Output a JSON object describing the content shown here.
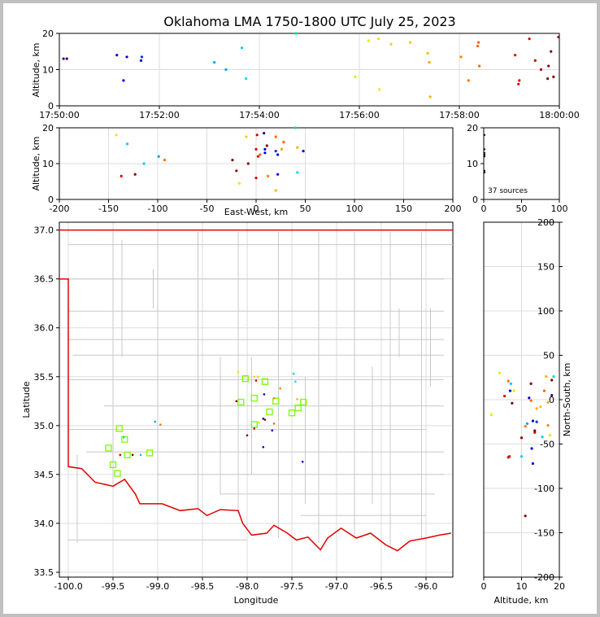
{
  "title": "Oklahoma LMA 1750-1800 UTC July 25, 2023",
  "colors": {
    "frame": "#c0c0c0",
    "grid": "#dddddd",
    "county": "#c8c8c8",
    "state": "#e00000",
    "station": "#7cfc00"
  },
  "chart_data": [
    {
      "id": "time_altitude",
      "type": "scatter",
      "ylabel": "Altitude, km",
      "xlim": [
        "17:50:00",
        "18:00:00"
      ],
      "ylim": [
        0,
        20
      ],
      "x_ticks": [
        "17:50:00",
        "17:52:00",
        "17:54:00",
        "17:56:00",
        "17:58:00",
        "18:00:00"
      ],
      "y_ticks": [
        0,
        10,
        20
      ],
      "grid": true,
      "points": [
        {
          "x": "17:50:05",
          "y": 13,
          "color": "#3a007a"
        },
        {
          "x": "17:50:09",
          "y": 13,
          "color": "#3a007a"
        },
        {
          "x": "17:51:09",
          "y": 14,
          "color": "#0000d0"
        },
        {
          "x": "17:51:17",
          "y": 7,
          "color": "#0000d0"
        },
        {
          "x": "17:51:21",
          "y": 13.5,
          "color": "#0000d0"
        },
        {
          "x": "17:51:38",
          "y": 12.5,
          "color": "#0000d0"
        },
        {
          "x": "17:51:39",
          "y": 13.5,
          "color": "#0030e0"
        },
        {
          "x": "17:53:06",
          "y": 12,
          "color": "#00a0ff"
        },
        {
          "x": "17:53:20",
          "y": 10,
          "color": "#00a0ff"
        },
        {
          "x": "17:53:39",
          "y": 16,
          "color": "#00c8ff"
        },
        {
          "x": "17:53:44",
          "y": 7.5,
          "color": "#00d8ff"
        },
        {
          "x": "17:54:44",
          "y": 20,
          "color": "#00e0a0"
        },
        {
          "x": "17:55:55",
          "y": 8,
          "color": "#e8e800"
        },
        {
          "x": "17:56:11",
          "y": 18,
          "color": "#e8e800"
        },
        {
          "x": "17:56:23",
          "y": 18.5,
          "color": "#e8e800"
        },
        {
          "x": "17:56:24",
          "y": 4.5,
          "color": "#ffe000"
        },
        {
          "x": "17:56:38",
          "y": 17,
          "color": "#f0d000"
        },
        {
          "x": "17:57:01",
          "y": 17.5,
          "color": "#ffc000"
        },
        {
          "x": "17:57:22",
          "y": 14.5,
          "color": "#ffb000"
        },
        {
          "x": "17:57:24",
          "y": 12,
          "color": "#ffa000"
        },
        {
          "x": "17:57:25",
          "y": 2.5,
          "color": "#ffb000"
        },
        {
          "x": "17:58:02",
          "y": 13.5,
          "color": "#ff8000"
        },
        {
          "x": "17:58:11",
          "y": 7,
          "color": "#ff7000"
        },
        {
          "x": "17:58:22",
          "y": 16.5,
          "color": "#ff6000"
        },
        {
          "x": "17:58:23",
          "y": 17.5,
          "color": "#ff6000"
        },
        {
          "x": "17:58:24",
          "y": 11,
          "color": "#ff6000"
        },
        {
          "x": "17:59:07",
          "y": 14,
          "color": "#e00000"
        },
        {
          "x": "17:59:11",
          "y": 6,
          "color": "#e00000"
        },
        {
          "x": "17:59:12",
          "y": 7,
          "color": "#e00000"
        },
        {
          "x": "17:59:24",
          "y": 18.5,
          "color": "#d00000"
        },
        {
          "x": "17:59:31",
          "y": 12.5,
          "color": "#c00000"
        },
        {
          "x": "17:59:38",
          "y": 10,
          "color": "#a00000"
        },
        {
          "x": "17:59:46",
          "y": 7.5,
          "color": "#900000"
        },
        {
          "x": "17:59:47",
          "y": 11,
          "color": "#900000"
        },
        {
          "x": "17:59:50",
          "y": 15,
          "color": "#800000"
        },
        {
          "x": "17:59:53",
          "y": 8,
          "color": "#800000"
        },
        {
          "x": "17:59:59",
          "y": 19,
          "color": "#800000"
        }
      ]
    },
    {
      "id": "ew_altitude",
      "type": "scatter",
      "xlabel": "East-West, km",
      "ylabel": "Altitude, km",
      "xlim": [
        -200,
        200
      ],
      "ylim": [
        0,
        20
      ],
      "x_ticks": [
        -200,
        -150,
        -100,
        -50,
        0,
        50,
        100,
        150,
        200
      ],
      "y_ticks": [
        0,
        10,
        20
      ],
      "grid": true,
      "points": [
        {
          "x": -142,
          "y": 18,
          "color": "#e8e800"
        },
        {
          "x": -131,
          "y": 15.5,
          "color": "#00c8ff"
        },
        {
          "x": -137,
          "y": 6.5,
          "color": "#e00000"
        },
        {
          "x": -123,
          "y": 7,
          "color": "#800000"
        },
        {
          "x": -114,
          "y": 10,
          "color": "#00c8ff"
        },
        {
          "x": -99,
          "y": 12,
          "color": "#00a0ff"
        },
        {
          "x": -93,
          "y": 11,
          "color": "#ff7000"
        },
        {
          "x": -24,
          "y": 11,
          "color": "#800000"
        },
        {
          "x": -20,
          "y": 8,
          "color": "#a00000"
        },
        {
          "x": -17,
          "y": 4.5,
          "color": "#ffe000"
        },
        {
          "x": -10,
          "y": 17.5,
          "color": "#f0d000"
        },
        {
          "x": -8,
          "y": 10,
          "color": "#900000"
        },
        {
          "x": 0,
          "y": 14,
          "color": "#e00000"
        },
        {
          "x": 1,
          "y": 18,
          "color": "#d00000"
        },
        {
          "x": 2,
          "y": 12,
          "color": "#e00000"
        },
        {
          "x": 0,
          "y": 6,
          "color": "#e00000"
        },
        {
          "x": 4,
          "y": 12.5,
          "color": "#ff6000"
        },
        {
          "x": 8,
          "y": 18.5,
          "color": "#3a007a"
        },
        {
          "x": 9,
          "y": 14,
          "color": "#0000d0"
        },
        {
          "x": 9,
          "y": 13,
          "color": "#0000d0"
        },
        {
          "x": 11,
          "y": 15,
          "color": "#800000"
        },
        {
          "x": 12,
          "y": 6.5,
          "color": "#ff8000"
        },
        {
          "x": 20,
          "y": 17.5,
          "color": "#ff6000"
        },
        {
          "x": 20,
          "y": 13.5,
          "color": "#0030e0"
        },
        {
          "x": 22,
          "y": 12.5,
          "color": "#0000d0"
        },
        {
          "x": 22,
          "y": 7,
          "color": "#0000d0"
        },
        {
          "x": 20,
          "y": 2.5,
          "color": "#ffb000"
        },
        {
          "x": 26,
          "y": 14,
          "color": "#ffa000"
        },
        {
          "x": 28,
          "y": 16,
          "color": "#ff6000"
        },
        {
          "x": 40,
          "y": 20,
          "color": "#00e0a0"
        },
        {
          "x": 42,
          "y": 14.5,
          "color": "#ffb000"
        },
        {
          "x": 42,
          "y": 7.5,
          "color": "#00d8ff"
        },
        {
          "x": 48,
          "y": 13.5,
          "color": "#0000d0"
        }
      ]
    },
    {
      "id": "altitude_histogram",
      "type": "line",
      "annotation": "37 sources",
      "xlim": [
        0,
        100
      ],
      "ylim": [
        0,
        20
      ],
      "x_ticks": [
        0,
        50,
        100
      ],
      "y_ticks": [
        0,
        10,
        20
      ],
      "points": [
        {
          "x": 1,
          "y": 18
        },
        {
          "x": 1,
          "y": 14
        },
        {
          "x": 1,
          "y": 13
        },
        {
          "x": 1,
          "y": 12.5
        },
        {
          "x": 1,
          "y": 12
        },
        {
          "x": 1,
          "y": 8
        },
        {
          "x": 1,
          "y": 7.5
        }
      ]
    },
    {
      "id": "plan_view",
      "type": "scatter",
      "xlabel": "Longitude",
      "ylabel": "Latitude",
      "xlim": [
        -100.1,
        -95.7
      ],
      "ylim": [
        33.45,
        37.08
      ],
      "x_ticks": [
        -100.0,
        -99.5,
        -99.0,
        -98.5,
        -98.0,
        -97.5,
        -97.0,
        -96.5,
        -96.0
      ],
      "y_ticks": [
        33.5,
        34.0,
        34.5,
        35.0,
        35.5,
        36.0,
        36.5,
        37.0
      ],
      "grid": true,
      "stations": [
        {
          "lon": -99.55,
          "lat": 34.77
        },
        {
          "lon": -99.5,
          "lat": 34.6
        },
        {
          "lon": -99.45,
          "lat": 34.51
        },
        {
          "lon": -99.43,
          "lat": 34.97
        },
        {
          "lon": -99.37,
          "lat": 34.86
        },
        {
          "lon": -99.34,
          "lat": 34.7
        },
        {
          "lon": -99.09,
          "lat": 34.72
        },
        {
          "lon": -98.07,
          "lat": 35.24
        },
        {
          "lon": -98.02,
          "lat": 35.48
        },
        {
          "lon": -97.92,
          "lat": 35.28
        },
        {
          "lon": -97.92,
          "lat": 35.01
        },
        {
          "lon": -97.8,
          "lat": 35.45
        },
        {
          "lon": -97.75,
          "lat": 35.14
        },
        {
          "lon": -97.68,
          "lat": 35.25
        },
        {
          "lon": -97.5,
          "lat": 35.13
        },
        {
          "lon": -97.43,
          "lat": 35.18
        },
        {
          "lon": -97.37,
          "lat": 35.24
        }
      ],
      "points": [
        {
          "lon": -99.42,
          "lat": 34.7,
          "color": "#e00000"
        },
        {
          "lon": -99.38,
          "lat": 34.88,
          "color": "#00c8ff"
        },
        {
          "lon": -99.28,
          "lat": 34.7,
          "color": "#800000"
        },
        {
          "lon": -99.19,
          "lat": 34.7,
          "color": "#00c8ff"
        },
        {
          "lon": -99.03,
          "lat": 35.04,
          "color": "#00a0ff"
        },
        {
          "lon": -98.97,
          "lat": 35.01,
          "color": "#ff7000"
        },
        {
          "lon": -98.1,
          "lat": 35.55,
          "color": "#ffe000"
        },
        {
          "lon": -98.12,
          "lat": 35.25,
          "color": "#800000"
        },
        {
          "lon": -98.0,
          "lat": 34.9,
          "color": "#900000"
        },
        {
          "lon": -97.92,
          "lat": 35.5,
          "color": "#f0d000"
        },
        {
          "lon": -97.9,
          "lat": 35.46,
          "color": "#e00000"
        },
        {
          "lon": -97.88,
          "lat": 35.5,
          "color": "#f0d000"
        },
        {
          "lon": -97.92,
          "lat": 34.97,
          "color": "#e00000"
        },
        {
          "lon": -97.87,
          "lat": 35.03,
          "color": "#ffe000"
        },
        {
          "lon": -97.81,
          "lat": 35.32,
          "color": "#0000d0"
        },
        {
          "lon": -97.82,
          "lat": 35.07,
          "color": "#0000d0"
        },
        {
          "lon": -97.8,
          "lat": 35.06,
          "color": "#800000"
        },
        {
          "lon": -97.82,
          "lat": 34.78,
          "color": "#0000d0"
        },
        {
          "lon": -97.7,
          "lat": 35.02,
          "color": "#ff6000"
        },
        {
          "lon": -97.7,
          "lat": 35.28,
          "color": "#ff8000"
        },
        {
          "lon": -97.72,
          "lat": 34.95,
          "color": "#0000d0"
        },
        {
          "lon": -97.63,
          "lat": 35.38,
          "color": "#ff8000"
        },
        {
          "lon": -97.48,
          "lat": 35.53,
          "color": "#00e0a0"
        },
        {
          "lon": -97.46,
          "lat": 35.45,
          "color": "#00d8ff"
        },
        {
          "lon": -97.44,
          "lat": 35.27,
          "color": "#ffb000"
        },
        {
          "lon": -97.38,
          "lat": 34.63,
          "color": "#0000d0"
        }
      ]
    },
    {
      "id": "altitude_ns",
      "type": "scatter",
      "xlabel": "Altitude, km",
      "ylabel": "North-South, km",
      "xlim": [
        0,
        20
      ],
      "ylim": [
        -200,
        200
      ],
      "x_ticks": [
        0,
        5,
        10,
        15,
        20
      ],
      "y_ticks": [
        -200,
        -150,
        -100,
        -50,
        0,
        50,
        100,
        150,
        200
      ],
      "grid": true,
      "points": [
        {
          "x": 2,
          "y": -17,
          "color": "#e8e800"
        },
        {
          "x": 4.2,
          "y": 30,
          "color": "#e8e800"
        },
        {
          "x": 5.5,
          "y": 4,
          "color": "#e00000"
        },
        {
          "x": 6.5,
          "y": -65,
          "color": "#e00000"
        },
        {
          "x": 6.8,
          "y": -64,
          "color": "#e00000"
        },
        {
          "x": 6.5,
          "y": 21,
          "color": "#ff7000"
        },
        {
          "x": 7,
          "y": 10,
          "color": "#0000d0"
        },
        {
          "x": 7.5,
          "y": -4,
          "color": "#800000"
        },
        {
          "x": 7.2,
          "y": 18,
          "color": "#00c8ff"
        },
        {
          "x": 8,
          "y": 10,
          "color": "#ffe000"
        },
        {
          "x": 10,
          "y": -43,
          "color": "#900000"
        },
        {
          "x": 10,
          "y": -64,
          "color": "#00c8ff"
        },
        {
          "x": 11,
          "y": -30,
          "color": "#ff7000"
        },
        {
          "x": 11.5,
          "y": -27,
          "color": "#00a0ff"
        },
        {
          "x": 11,
          "y": -131,
          "color": "#800000"
        },
        {
          "x": 12,
          "y": 2,
          "color": "#0000d0"
        },
        {
          "x": 12.5,
          "y": -1,
          "color": "#ff6000"
        },
        {
          "x": 12.5,
          "y": 18,
          "color": "#800000"
        },
        {
          "x": 12.7,
          "y": -55,
          "color": "#0000d0"
        },
        {
          "x": 13,
          "y": -72,
          "color": "#0000d0"
        },
        {
          "x": 13,
          "y": -24,
          "color": "#0000d0"
        },
        {
          "x": 13.5,
          "y": -37,
          "color": "#e00000"
        },
        {
          "x": 13.5,
          "y": -35,
          "color": "#800000"
        },
        {
          "x": 14,
          "y": -25,
          "color": "#0030e0"
        },
        {
          "x": 14,
          "y": -10,
          "color": "#ffb000"
        },
        {
          "x": 15,
          "y": -8,
          "color": "#ffc000"
        },
        {
          "x": 15.5,
          "y": -42,
          "color": "#00c8ff"
        },
        {
          "x": 16,
          "y": 10,
          "color": "#ff6000"
        },
        {
          "x": 16.5,
          "y": 26,
          "color": "#ffb000"
        },
        {
          "x": 17,
          "y": -3,
          "color": "#ffa000"
        },
        {
          "x": 17,
          "y": -29,
          "color": "#ff8000"
        },
        {
          "x": 17.5,
          "y": -40,
          "color": "#ffe000"
        },
        {
          "x": 18,
          "y": 22,
          "color": "#800000"
        },
        {
          "x": 18,
          "y": 5,
          "color": "#3a007a"
        },
        {
          "x": 18.5,
          "y": 26,
          "color": "#00e0a0"
        }
      ]
    }
  ]
}
